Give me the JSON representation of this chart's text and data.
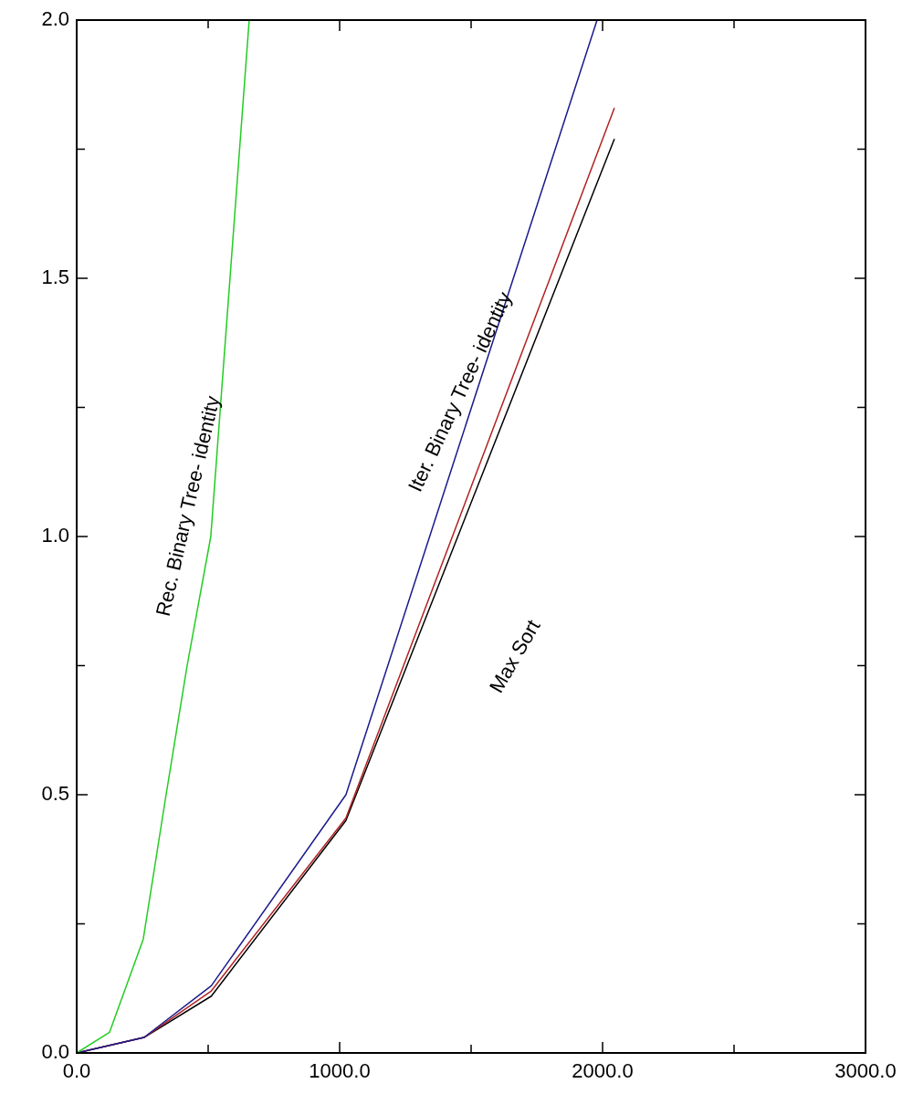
{
  "chart_data": {
    "type": "line",
    "xlim": [
      0,
      3000
    ],
    "ylim": [
      0,
      2
    ],
    "xticks": [
      {
        "value": 0,
        "label": "0.0"
      },
      {
        "value": 500,
        "label": null
      },
      {
        "value": 1000,
        "label": "1000.0"
      },
      {
        "value": 1500,
        "label": null
      },
      {
        "value": 2000,
        "label": "2000.0"
      },
      {
        "value": 2500,
        "label": null
      },
      {
        "value": 3000,
        "label": "3000.0"
      }
    ],
    "yticks": [
      {
        "value": 0,
        "label": "0.0"
      },
      {
        "value": 0.25,
        "label": null
      },
      {
        "value": 0.5,
        "label": "0.5"
      },
      {
        "value": 0.75,
        "label": null
      },
      {
        "value": 1,
        "label": "1.0"
      },
      {
        "value": 1.25,
        "label": null
      },
      {
        "value": 1.5,
        "label": "1.5"
      },
      {
        "value": 1.75,
        "label": null
      },
      {
        "value": 2,
        "label": "2.0"
      }
    ],
    "series": [
      {
        "color": "#22cc22",
        "x": [
          0,
          125,
          253,
          340,
          420,
          510,
          656
        ],
        "values": [
          0,
          0.04,
          0.22,
          0.5,
          0.75,
          1.0,
          2.0
        ]
      },
      {
        "color": "#1a1a8c",
        "x": [
          0,
          256,
          512,
          1024,
          1979
        ],
        "values": [
          0,
          0.03,
          0.13,
          0.5,
          2.0
        ]
      },
      {
        "color": "#b22222",
        "x": [
          0,
          256,
          512,
          1024,
          2045
        ],
        "values": [
          0,
          0.03,
          0.12,
          0.455,
          1.83
        ]
      },
      {
        "color": "#000000",
        "x": [
          0,
          256,
          512,
          1024,
          2045
        ],
        "values": [
          0,
          0.03,
          0.11,
          0.45,
          1.77
        ]
      }
    ],
    "annotations": [
      "Rec. Binary Tree- identity",
      "Iter. Binary Tree- identity",
      "Max Sort"
    ],
    "grid": false,
    "legend": false,
    "marker": "none",
    "line_style": "solid"
  }
}
